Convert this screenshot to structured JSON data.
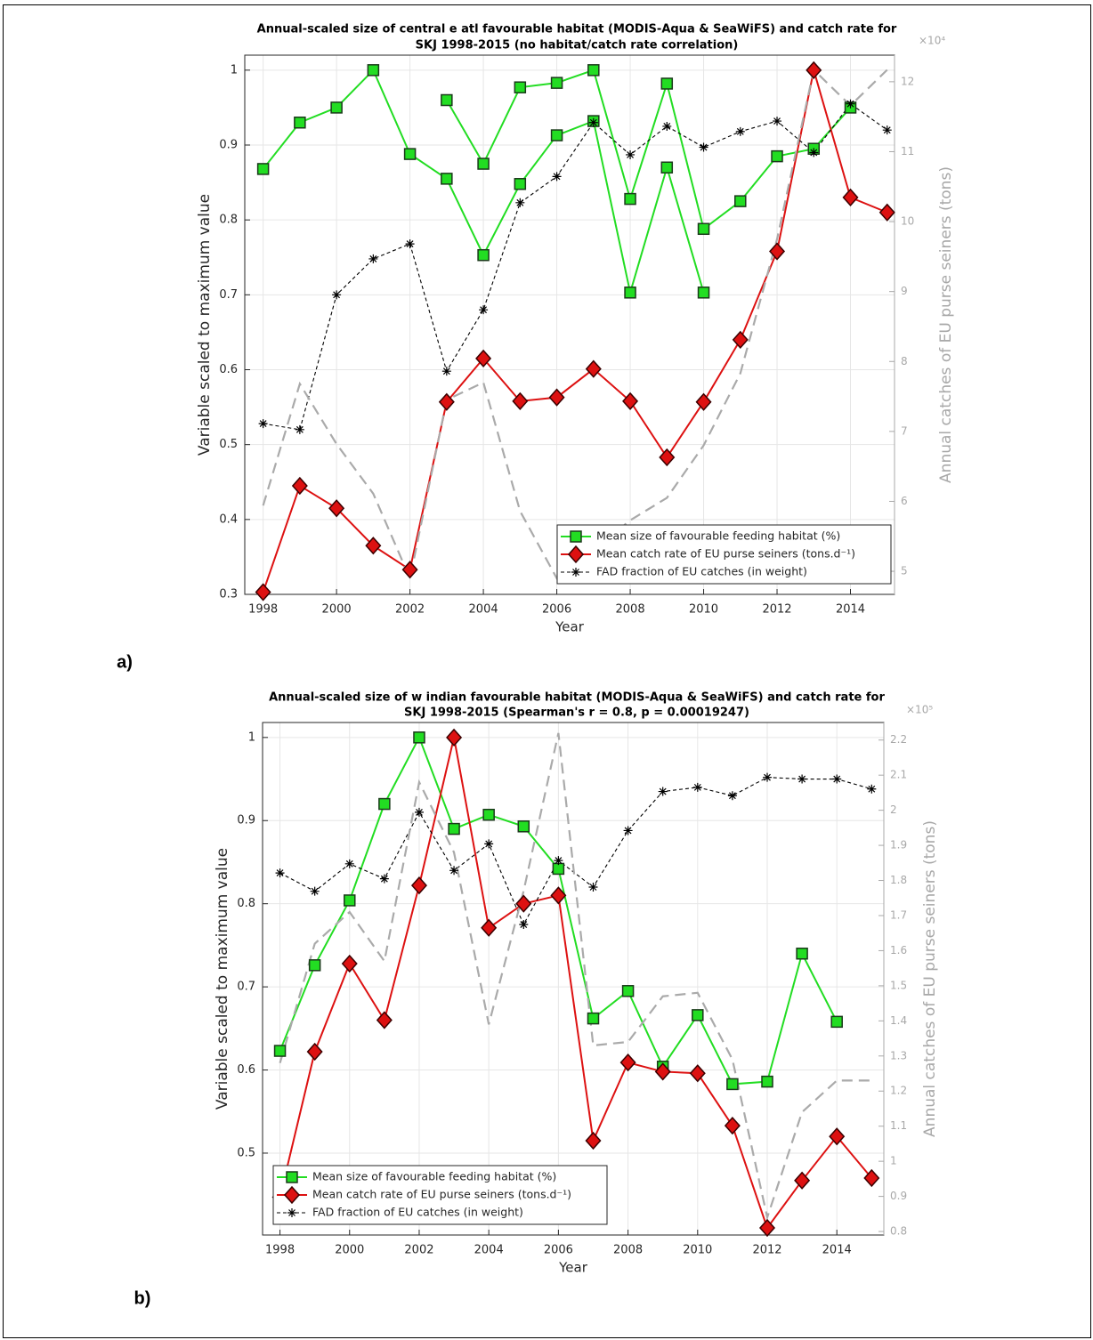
{
  "chart_data": [
    {
      "type": "line",
      "title": [
        "Annual-scaled size of central e atl favourable habitat (MODIS-Aqua & SeaWiFS) and catch rate for",
        "SKJ   1998-2015 (no habitat/catch rate correlation)"
      ],
      "panel_label": "a)",
      "x_label": "Year",
      "y_label": "Variable scaled to maximum value",
      "y2_label": "Annual catches of EU purse seiners (tons)",
      "y2_multiplier": "×10⁴",
      "x": [
        1998,
        1999,
        2000,
        2001,
        2002,
        2003,
        2004,
        2005,
        2006,
        2007,
        2008,
        2009,
        2010,
        2011,
        2012,
        2013,
        2014,
        2015
      ],
      "xlim": [
        1997.5,
        2015.2
      ],
      "xticks": [
        1998,
        2000,
        2002,
        2004,
        2006,
        2008,
        2010,
        2012,
        2014
      ],
      "ylim": [
        0.3,
        1.02
      ],
      "yticks": [
        0.3,
        0.4,
        0.5,
        0.6,
        0.7,
        0.8,
        0.9,
        1
      ],
      "y2lim": [
        4.67,
        12.38
      ],
      "y2ticks": [
        5,
        6,
        7,
        8,
        9,
        10,
        11,
        12
      ],
      "grid": true,
      "legend": "lower right",
      "series": [
        {
          "name": "Mean size of favourable feeding habitat (%)",
          "color": "#22dd22",
          "marker": "square",
          "linestyle": "solid",
          "values": [
            0.868,
            0.93,
            0.95,
            1.0,
            0.888,
            0.855,
            0.753,
            0.848,
            0.913,
            0.932,
            0.703,
            0.87,
            0.703,
            null,
            null,
            null,
            null,
            null
          ]
        },
        {
          "color": "#22dd22",
          "marker": "square",
          "linestyle": "solid",
          "values": [
            null,
            null,
            null,
            null,
            null,
            0.96,
            0.875,
            0.977,
            0.983,
            1.0,
            0.828,
            0.982,
            0.788,
            0.825,
            0.885,
            0.895,
            0.95,
            null
          ]
        },
        {
          "name": "Mean catch rate of EU purse seiners (tons.d⁻¹)",
          "color": "#dd1111",
          "marker": "diamond",
          "linestyle": "solid",
          "values": [
            0.303,
            0.445,
            0.415,
            0.365,
            0.333,
            0.557,
            0.615,
            0.558,
            0.563,
            0.601,
            0.558,
            0.483,
            0.557,
            0.64,
            0.758,
            1.0,
            0.83,
            0.81
          ]
        },
        {
          "name": "FAD fraction of EU catches (in weight)",
          "color": "#000000",
          "marker": "asterisk",
          "linestyle": "dotted",
          "values": [
            0.528,
            0.52,
            0.7,
            0.748,
            0.768,
            0.598,
            0.68,
            0.823,
            0.858,
            0.93,
            0.887,
            0.925,
            0.897,
            0.918,
            0.932,
            0.89,
            0.955,
            0.92
          ]
        },
        {
          "color": "#aaaaaa",
          "marker": "none",
          "linestyle": "dashed",
          "axis": "y2",
          "values": [
            5.94,
            7.68,
            6.82,
            6.11,
            4.9,
            7.45,
            7.7,
            5.86,
            4.9,
            5.3,
            5.73,
            6.05,
            6.8,
            7.83,
            9.75,
            12.17,
            11.66,
            12.17
          ]
        }
      ]
    },
    {
      "type": "line",
      "title": [
        "Annual-scaled size of w indian favourable habitat (MODIS-Aqua & SeaWiFS) and catch rate for",
        "SKJ   1998-2015 (Spearman's r = 0.8, p = 0.00019247)"
      ],
      "panel_label": "b)",
      "x_label": "Year",
      "y_label": "Variable scaled to maximum value",
      "y2_label": "Annual catches of EU purse seiners (tons)",
      "y2_multiplier": "×10⁵",
      "x": [
        1998,
        1999,
        2000,
        2001,
        2002,
        2003,
        2004,
        2005,
        2006,
        2007,
        2008,
        2009,
        2010,
        2011,
        2012,
        2013,
        2014,
        2015
      ],
      "xlim": [
        1997.5,
        2015.35
      ],
      "xticks": [
        1998,
        2000,
        2002,
        2004,
        2006,
        2008,
        2010,
        2012,
        2014
      ],
      "ylim": [
        0.4015,
        1.018
      ],
      "yticks": [
        0.5,
        0.6,
        0.7,
        0.8,
        0.9,
        1
      ],
      "y2lim": [
        0.79,
        2.25
      ],
      "y2ticks": [
        0.8,
        0.9,
        1,
        1.1,
        1.2,
        1.3,
        1.4,
        1.5,
        1.6,
        1.7,
        1.8,
        1.9,
        2,
        2.1,
        2.2
      ],
      "grid": true,
      "legend": "lower left",
      "series": [
        {
          "name": "Mean size of favourable feeding habitat (%)",
          "color": "#22dd22",
          "marker": "square",
          "linestyle": "solid",
          "values": [
            0.623,
            0.726,
            0.804,
            0.92,
            1.0,
            0.89,
            0.907,
            0.893,
            0.842,
            0.662,
            0.695,
            0.604,
            0.666,
            0.583,
            0.586,
            0.74,
            0.658,
            null
          ]
        },
        {
          "name": "Mean catch rate of EU purse seiners (tons.d⁻¹)",
          "color": "#dd1111",
          "marker": "diamond",
          "linestyle": "solid",
          "values": [
            0.447,
            0.622,
            0.728,
            0.66,
            0.822,
            1.0,
            0.771,
            0.8,
            0.81,
            0.515,
            0.609,
            0.598,
            0.596,
            0.533,
            0.41,
            0.467,
            0.52,
            0.47
          ]
        },
        {
          "name": "FAD fraction of EU catches (in weight)",
          "color": "#000000",
          "marker": "asterisk",
          "linestyle": "dotted",
          "values": [
            0.837,
            0.815,
            0.848,
            0.83,
            0.91,
            0.84,
            0.872,
            0.775,
            0.852,
            0.82,
            0.888,
            0.935,
            0.94,
            0.93,
            0.952,
            0.95,
            0.95,
            0.938
          ]
        },
        {
          "color": "#aaaaaa",
          "marker": "none",
          "linestyle": "dashed",
          "axis": "y2",
          "values": [
            1.28,
            1.62,
            1.71,
            1.57,
            2.08,
            1.88,
            1.39,
            1.77,
            2.22,
            1.33,
            1.34,
            1.47,
            1.48,
            1.29,
            0.84,
            1.14,
            1.23,
            1.23
          ]
        }
      ]
    }
  ]
}
